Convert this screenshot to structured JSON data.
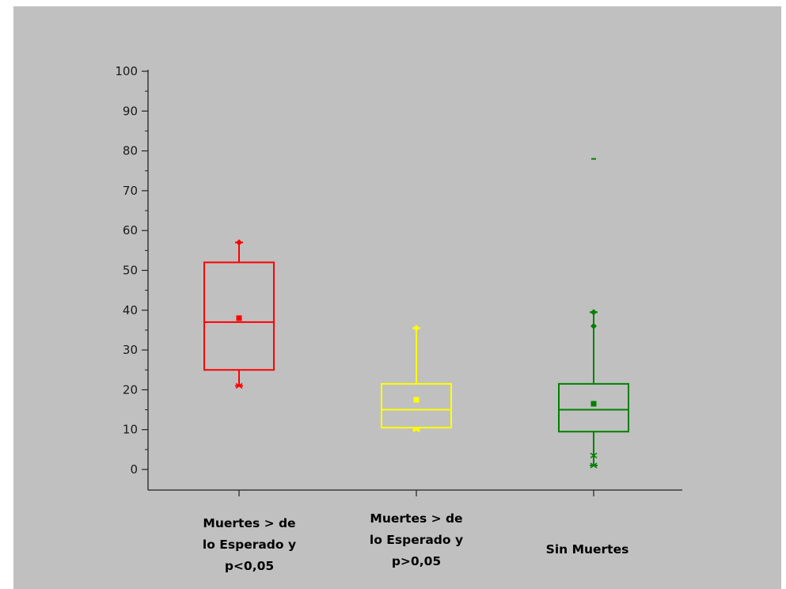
{
  "chart_data": {
    "type": "box",
    "title": "",
    "xlabel": "",
    "ylabel": "",
    "ylim": [
      -5,
      100
    ],
    "yticks": [
      0,
      10,
      20,
      30,
      40,
      50,
      60,
      70,
      80,
      90,
      100
    ],
    "grid": false,
    "legend": "none",
    "categories": [
      [
        "Muertes > de",
        "lo Esperado y",
        "p<0,05"
      ],
      [
        "Muertes > de",
        "lo Esperado y",
        "p>0,05"
      ],
      [
        "Sin Muertes"
      ]
    ],
    "series": [
      {
        "color": "#ff0000",
        "q1": 25,
        "median": 37,
        "q3": 52,
        "mean": 38,
        "whisker_low": 21,
        "whisker_high": 57,
        "outliers": []
      },
      {
        "color": "#ffff00",
        "q1": 10.5,
        "median": 15,
        "q3": 21.5,
        "mean": 17.5,
        "whisker_low": 10,
        "whisker_high": 35.5,
        "outliers": []
      },
      {
        "color": "#008000",
        "q1": 9.5,
        "median": 15,
        "q3": 21.5,
        "mean": 16.5,
        "whisker_low": 1,
        "whisker_high": 39.5,
        "outliers": [
          3.5,
          36,
          78
        ]
      }
    ]
  }
}
